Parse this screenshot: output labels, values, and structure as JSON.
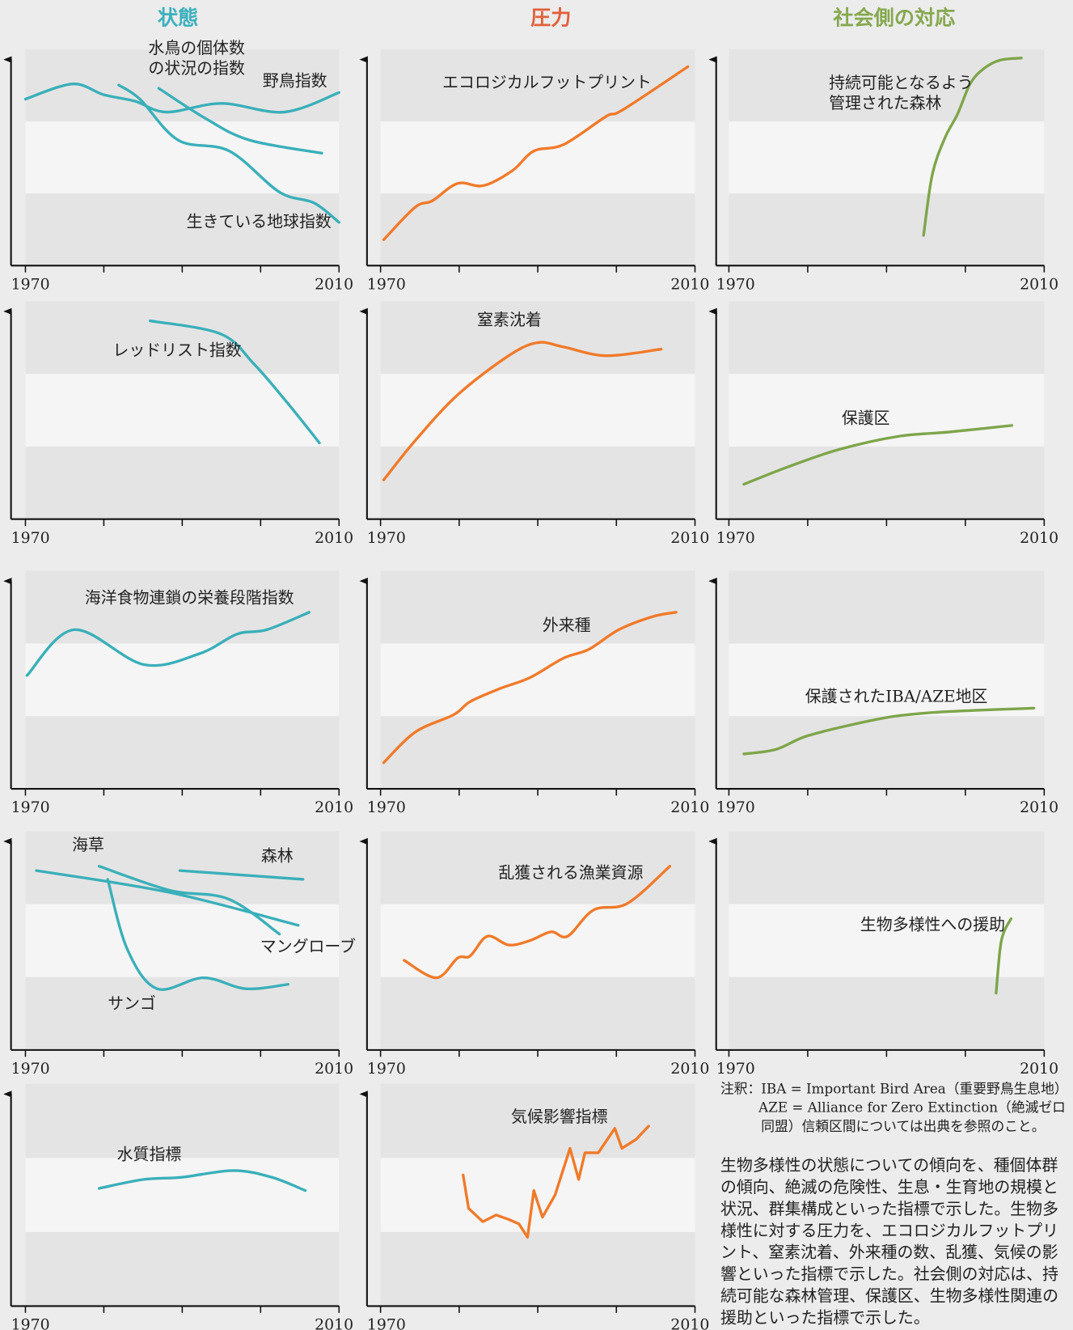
{
  "columns": [
    {
      "title": "状態",
      "color": "#3bb0bd"
    },
    {
      "title": "圧力",
      "color": "#e2603a"
    },
    {
      "title": "社会側の対応",
      "color": "#86a84f"
    }
  ],
  "chart_data": [
    {
      "type": "line",
      "smooth": true,
      "xlim": [
        1970,
        2010
      ],
      "xticks": [
        1970,
        2010
      ],
      "minor_xticks": [
        1980,
        1990,
        2000
      ],
      "ylim": [
        0,
        100
      ],
      "series": [
        {
          "name": "野鳥指数",
          "color": "#3aafb9",
          "x": [
            1970,
            1976,
            1980,
            1984,
            1988,
            1995,
            2003,
            2010
          ],
          "values": [
            77,
            84,
            79,
            76,
            71,
            75,
            71,
            80
          ]
        },
        {
          "name": "水鳥の個体数の状況の指数",
          "color": "#3aafb9",
          "x": [
            1987,
            1993,
            1998.6,
            2007.8
          ],
          "values": [
            82,
            68,
            58,
            52
          ]
        },
        {
          "name": "生きている地球指数",
          "color": "#3aafb9",
          "x": [
            1981.9,
            1984.6,
            1989.5,
            1996,
            2002.4,
            2006.8,
            2010
          ],
          "values": [
            83.5,
            77,
            58,
            53,
            34,
            29,
            20
          ]
        }
      ]
    },
    {
      "type": "line",
      "smooth": true,
      "xlim": [
        1970,
        2010
      ],
      "xticks": [
        1970,
        2010
      ],
      "minor_xticks": [
        1980,
        1990,
        2000
      ],
      "ylim": [
        0,
        100
      ],
      "series": [
        {
          "name": "エコロジカルフットプリント",
          "color": "#f07a2a",
          "x": [
            1970.4,
            1974.4,
            1976.6,
            1979.8,
            1983.1,
            1986.8,
            1989.5,
            1993.3,
            1998.7,
            2000.8,
            2009.1
          ],
          "values": [
            12,
            27,
            30,
            38,
            37,
            44,
            53,
            56,
            69,
            72,
            92
          ]
        }
      ]
    },
    {
      "type": "line",
      "smooth": true,
      "xlim": [
        1970,
        2010
      ],
      "xticks": [
        1970,
        2010
      ],
      "minor_xticks": [
        1980,
        1990,
        2000
      ],
      "ylim": [
        0,
        100
      ],
      "series": [
        {
          "name": "持続可能となるよう管理された森林",
          "color": "#7ea54a",
          "x": [
            1994.7,
            1995.8,
            1997.4,
            1999,
            2000.6,
            2002.3,
            2004.4,
            2007.1
          ],
          "values": [
            14,
            42,
            59,
            70,
            84,
            91,
            95,
            96
          ]
        }
      ]
    },
    {
      "type": "line",
      "smooth": true,
      "xlim": [
        1970,
        2010
      ],
      "xticks": [
        1970,
        2010
      ],
      "minor_xticks": [
        1980,
        1990,
        2000
      ],
      "ylim": [
        0,
        100
      ],
      "series": [
        {
          "name": "レッドリスト指数",
          "color": "#3aafb9",
          "x": [
            1985.9,
            1994.9,
            1999.2,
            2003.5,
            2007.5
          ],
          "values": [
            91,
            85,
            71,
            53,
            35
          ]
        }
      ]
    },
    {
      "type": "line",
      "smooth": true,
      "xlim": [
        1970,
        2010
      ],
      "xticks": [
        1970,
        2010
      ],
      "minor_xticks": [
        1980,
        1990,
        2000
      ],
      "ylim": [
        0,
        100
      ],
      "series": [
        {
          "name": "窒素沈着",
          "color": "#f07a2a",
          "x": [
            1970.4,
            1974.4,
            1979.8,
            1986.3,
            1990,
            1993.3,
            1998.7,
            2005.7
          ],
          "values": [
            18,
            36,
            57,
            75,
            81,
            79,
            75,
            78
          ]
        }
      ]
    },
    {
      "type": "line",
      "smooth": true,
      "xlim": [
        1970,
        2010
      ],
      "xticks": [
        1970,
        2010
      ],
      "minor_xticks": [
        1980,
        1990,
        2000
      ],
      "ylim": [
        0,
        100
      ],
      "series": [
        {
          "name": "保護区",
          "color": "#7ea54a",
          "x": [
            1971.9,
            1977.5,
            1984,
            1991.5,
            1998,
            2005.9
          ],
          "values": [
            16,
            24,
            32,
            38,
            40,
            43
          ]
        }
      ]
    },
    {
      "type": "line",
      "smooth": true,
      "xlim": [
        1970,
        2010
      ],
      "xticks": [
        1970,
        2010
      ],
      "minor_xticks": [
        1980,
        1990,
        2000
      ],
      "ylim": [
        0,
        100
      ],
      "series": [
        {
          "name": "海洋食物連鎖の栄養段階指数",
          "color": "#3aafb9",
          "x": [
            1970.2,
            1976.2,
            1985.1,
            1992.2,
            1997,
            2000.8,
            2006.2
          ],
          "values": [
            52,
            73,
            57,
            62,
            71,
            73,
            81
          ]
        }
      ]
    },
    {
      "type": "line",
      "smooth": true,
      "xlim": [
        1970,
        2010
      ],
      "xticks": [
        1970,
        2010
      ],
      "minor_xticks": [
        1980,
        1990,
        2000
      ],
      "ylim": [
        0,
        100
      ],
      "series": [
        {
          "name": "外来種",
          "color": "#f07a2a",
          "x": [
            1970.4,
            1974.4,
            1979.3,
            1981.4,
            1985.2,
            1989,
            1993.3,
            1996.5,
            2000.3,
            2004.6,
            2007.6
          ],
          "values": [
            12,
            26,
            34,
            40,
            46,
            51,
            60,
            64,
            73,
            79,
            81
          ]
        }
      ]
    },
    {
      "type": "line",
      "smooth": true,
      "xlim": [
        1970,
        2010
      ],
      "xticks": [
        1970,
        2010
      ],
      "minor_xticks": [
        1980,
        1990,
        2000
      ],
      "ylim": [
        0,
        100
      ],
      "series": [
        {
          "name": "保護されたIBA/AZE地区",
          "color": "#7ea54a",
          "x": [
            1971.9,
            1975.9,
            1979.7,
            1985.1,
            1990.5,
            1995.8,
            2001.2,
            2008.7
          ],
          "values": [
            16,
            18,
            24,
            29,
            33,
            35,
            36,
            37
          ]
        }
      ]
    },
    {
      "type": "line",
      "smooth": true,
      "xlim": [
        1970,
        2010
      ],
      "xticks": [
        1970,
        2010
      ],
      "minor_xticks": [
        1980,
        1990,
        2000
      ],
      "ylim": [
        0,
        100
      ],
      "series": [
        {
          "name": "森林",
          "color": "#3aafb9",
          "x": [
            1989.7,
            2005.4
          ],
          "values": [
            82,
            78
          ]
        },
        {
          "name": "海草",
          "color": "#3aafb9",
          "x": [
            1971.4,
            1988.4,
            2004.8
          ],
          "values": [
            82,
            72,
            57
          ]
        },
        {
          "name": "マングローブ",
          "color": "#3aafb9",
          "x": [
            1979.4,
            1988.4,
            1995.9,
            2002.4
          ],
          "values": [
            84,
            73,
            69,
            53
          ]
        },
        {
          "name": "サンゴ",
          "color": "#3aafb9",
          "x": [
            1980.5,
            1983,
            1986.8,
            1992.7,
            1998.1,
            2003.5
          ],
          "values": [
            78,
            46,
            28,
            33,
            28,
            30
          ]
        }
      ]
    },
    {
      "type": "line",
      "smooth": true,
      "xlim": [
        1970,
        2010
      ],
      "xticks": [
        1970,
        2010
      ],
      "minor_xticks": [
        1980,
        1990,
        2000
      ],
      "ylim": [
        0,
        100
      ],
      "series": [
        {
          "name": "乱獲される漁業資源",
          "color": "#f07a2a",
          "x": [
            1973,
            1977.1,
            1979.8,
            1981.4,
            1983.6,
            1986.3,
            1989,
            1991.7,
            1993.8,
            1997.1,
            2001.4,
            2006.8
          ],
          "values": [
            41,
            33,
            42,
            43,
            52,
            48,
            50,
            54,
            52,
            64,
            67,
            84
          ]
        }
      ]
    },
    {
      "type": "line",
      "smooth": true,
      "xlim": [
        1970,
        2010
      ],
      "xticks": [
        1970,
        2010
      ],
      "minor_xticks": [
        1980,
        1990,
        2000
      ],
      "ylim": [
        0,
        100
      ],
      "series": [
        {
          "name": "生物多様性への援助",
          "color": "#7ea54a",
          "x": [
            2003.9,
            2004.4,
            2004.9,
            2005.8
          ],
          "values": [
            26,
            46,
            54,
            60
          ]
        }
      ]
    },
    {
      "type": "line",
      "smooth": true,
      "xlim": [
        1970,
        2010
      ],
      "xticks": [
        1970,
        2010
      ],
      "minor_xticks": [
        1980,
        1990,
        2000
      ],
      "ylim": [
        0,
        100
      ],
      "series": [
        {
          "name": "水質指標",
          "color": "#3aafb9",
          "x": [
            1979.4,
            1985.1,
            1990,
            1996.5,
            2001.4,
            2005.7
          ],
          "values": [
            53,
            57,
            58,
            61,
            58,
            52
          ]
        }
      ]
    },
    {
      "type": "line",
      "smooth": false,
      "xlim": [
        1970,
        2010
      ],
      "xticks": [
        1970,
        2010
      ],
      "minor_xticks": [
        1980,
        1990,
        2000
      ],
      "ylim": [
        0,
        100
      ],
      "series": [
        {
          "name": "気候影響指標",
          "color": "#f07a2a",
          "x": [
            1980.5,
            1981.2,
            1983,
            1984.7,
            1986.3,
            1987.6,
            1988.7,
            1989.5,
            1990.6,
            1992.2,
            1994.1,
            1995.2,
            1996,
            1997.7,
            1999.8,
            2000.7,
            2002.5,
            2004.1
          ],
          "values": [
            59,
            44,
            38,
            41,
            39,
            37,
            31,
            52,
            40,
            50,
            71,
            57,
            69,
            69,
            80,
            71,
            75,
            81
          ]
        }
      ]
    }
  ],
  "note": [
    "注釈：IBA = Important Bird Area（重要野鳥生息地）",
    "AZE = Alliance for Zero Extinction（絶滅ゼロ",
    "同盟）信頼区間については出典を参照のこと。"
  ],
  "description": [
    "生物多様性の状態についての傾向を、種個体群",
    "の傾向、絶滅の危険性、生息・生育地の規模と",
    "状況、群集構成といった指標で示した。生物多",
    "様性に対する圧力を、エコロジカルフットプリ",
    "ント、窒素沈着、外来種の数、乱獲、気候の影",
    "響といった指標で示した。社会側の対応は、持",
    "続可能な森林管理、保護区、生物多様性関連の",
    "援助といった指標で示した。"
  ]
}
